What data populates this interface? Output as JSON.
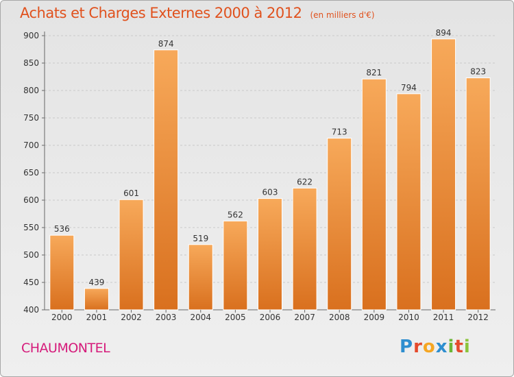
{
  "header": {
    "title": "Achats et Charges Externes 2000 à 2012",
    "unit": "(en milliers d'€)"
  },
  "footer": {
    "place": "CHAUMONTEL",
    "logo_letters": [
      "P",
      "r",
      "o",
      "x",
      "i",
      "t",
      "i"
    ],
    "logo_colors": [
      "#2e8ecf",
      "#e44a2c",
      "#f5a623",
      "#2e8ecf",
      "#6bb536",
      "#e44a2c",
      "#8cc43c"
    ]
  },
  "colors": {
    "bar_light": "#f7a95a",
    "bar_dark": "#d9701e",
    "title": "#e0511d",
    "place": "#d51a7a"
  },
  "chart_data": {
    "type": "bar",
    "categories": [
      "2000",
      "2001",
      "2002",
      "2003",
      "2004",
      "2005",
      "2006",
      "2007",
      "2008",
      "2009",
      "2010",
      "2011",
      "2012"
    ],
    "values": [
      536,
      439,
      601,
      874,
      519,
      562,
      603,
      622,
      713,
      821,
      794,
      894,
      823
    ],
    "ylim": [
      400,
      900
    ],
    "yticks": [
      400,
      450,
      500,
      550,
      600,
      650,
      700,
      750,
      800,
      850,
      900
    ],
    "grid": "horizontal-dashed"
  }
}
